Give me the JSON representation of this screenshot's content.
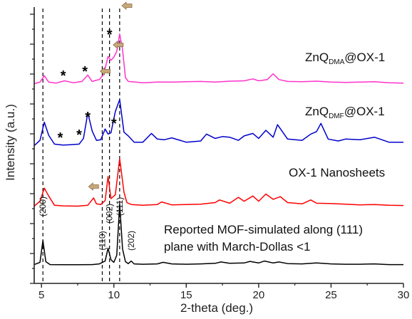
{
  "chart_data": {
    "type": "line",
    "title": "",
    "xlabel": "2-theta (deg.)",
    "ylabel": "Intensity (a.u.)",
    "xlim": [
      4.5,
      30
    ],
    "xticks": [
      5,
      10,
      15,
      20,
      25,
      30
    ],
    "yticks_shown": false,
    "grid": false,
    "dashed_reference_lines_x": [
      5.1,
      9.2,
      9.7,
      10.4
    ],
    "series": [
      {
        "name": "Reported MOF-simulated along (111) plane with March-Dollas <1",
        "color": "#000000",
        "x": [
          4.5,
          4.9,
          5.1,
          5.3,
          5.6,
          6.5,
          7.5,
          8.5,
          9.0,
          9.4,
          9.6,
          9.8,
          10.0,
          10.2,
          10.4,
          10.6,
          10.8,
          11.0,
          11.2,
          11.4,
          12.0,
          13.0,
          13.4,
          14.0,
          15.0,
          16.0,
          17.0,
          17.4,
          18.0,
          19.0,
          19.4,
          20.0,
          20.4,
          21.0,
          21.4,
          22.0,
          23.0,
          24.0,
          25.0,
          26.0,
          27.0,
          28.0,
          29.0,
          30.0
        ],
        "y": [
          0.05,
          0.4,
          3.8,
          0.5,
          0.05,
          0.02,
          0.02,
          0.05,
          0.15,
          0.6,
          2.6,
          0.8,
          0.4,
          1.5,
          9.5,
          2.5,
          0.5,
          0.2,
          0.6,
          0.15,
          0.1,
          0.15,
          0.4,
          0.15,
          0.1,
          0.15,
          0.25,
          0.45,
          0.25,
          0.3,
          0.55,
          0.3,
          0.6,
          0.3,
          0.45,
          0.2,
          0.15,
          0.3,
          0.15,
          0.1,
          0.1,
          0.15,
          0.05,
          0.05
        ]
      },
      {
        "name": "OX-1 Nanosheets",
        "color": "#ff0000",
        "x": [
          4.5,
          4.9,
          5.2,
          5.5,
          5.9,
          6.5,
          7.5,
          8.2,
          8.6,
          8.8,
          9.1,
          9.4,
          9.6,
          9.8,
          10.1,
          10.4,
          10.7,
          10.9,
          11.2,
          12.0,
          13.0,
          13.3,
          14.0,
          15.0,
          16.0,
          17.0,
          17.3,
          18.0,
          18.6,
          19.0,
          19.6,
          20.0,
          20.5,
          21.0,
          21.5,
          22.0,
          23.0,
          23.6,
          24.0,
          25.0,
          26.0,
          27.0,
          28.0,
          29.0,
          30.0
        ],
        "y": [
          0.05,
          0.8,
          2.8,
          1.6,
          0.2,
          0.1,
          0.05,
          0.2,
          1.3,
          0.4,
          0.3,
          0.9,
          4.6,
          1.2,
          1.8,
          7.3,
          2.2,
          0.6,
          0.3,
          0.2,
          0.3,
          0.7,
          0.25,
          0.3,
          0.35,
          0.6,
          1.0,
          0.5,
          1.4,
          0.8,
          1.6,
          0.8,
          1.9,
          1.1,
          1.5,
          0.6,
          0.4,
          1.0,
          0.5,
          0.45,
          0.35,
          0.25,
          0.3,
          0.2,
          0.15
        ]
      },
      {
        "name": "ZnQDMF@OX-1",
        "color": "#0000cc",
        "x": [
          4.5,
          4.9,
          5.2,
          5.5,
          5.9,
          6.5,
          7.0,
          7.6,
          7.9,
          8.2,
          8.5,
          8.8,
          9.1,
          9.4,
          9.6,
          9.8,
          10.1,
          10.4,
          10.7,
          11.0,
          11.4,
          12.0,
          12.6,
          13.0,
          13.5,
          14.0,
          15.0,
          16.0,
          16.4,
          17.0,
          17.5,
          18.0,
          18.6,
          19.0,
          19.6,
          20.0,
          20.5,
          21.0,
          21.3,
          22.0,
          23.0,
          23.6,
          24.0,
          24.3,
          24.8,
          25.5,
          26.0,
          27.0,
          28.0,
          29.0,
          30.0
        ],
        "y": [
          0.05,
          0.9,
          3.8,
          1.7,
          0.3,
          0.15,
          0.2,
          0.3,
          1.2,
          5.3,
          2.4,
          0.9,
          1.0,
          2.7,
          1.9,
          2.1,
          5.5,
          7.4,
          2.2,
          1.6,
          0.6,
          0.6,
          2.0,
          1.1,
          1.0,
          1.3,
          0.6,
          0.8,
          1.9,
          1.2,
          1.5,
          1.4,
          0.9,
          1.6,
          2.0,
          1.2,
          2.5,
          1.4,
          3.4,
          1.1,
          0.9,
          1.9,
          2.3,
          3.6,
          1.1,
          0.8,
          1.1,
          1.0,
          1.4,
          0.6,
          0.6
        ]
      },
      {
        "name": "ZnQDMA@OX-1",
        "color": "#ff33cc",
        "x": [
          4.5,
          4.9,
          5.2,
          5.5,
          6.0,
          6.6,
          7.2,
          7.8,
          8.2,
          8.5,
          8.8,
          9.0,
          9.3,
          9.6,
          9.8,
          10.0,
          10.2,
          10.4,
          10.6,
          10.8,
          11.0,
          11.5,
          12.0,
          13.0,
          14.0,
          15.0,
          16.0,
          17.0,
          18.0,
          19.0,
          19.6,
          20.0,
          20.6,
          21.0,
          21.4,
          22.0,
          23.0,
          24.0,
          25.0,
          26.0,
          27.0,
          28.0,
          29.0,
          30.0
        ],
        "y": [
          0.05,
          0.3,
          1.3,
          0.3,
          0.15,
          0.5,
          0.2,
          0.4,
          1.4,
          0.4,
          0.6,
          0.7,
          1.5,
          4.3,
          3.7,
          4.2,
          5.1,
          7.8,
          5.4,
          1.0,
          0.4,
          0.3,
          0.2,
          0.3,
          0.3,
          0.35,
          0.4,
          0.3,
          0.45,
          0.5,
          0.8,
          0.5,
          0.7,
          1.6,
          0.7,
          0.4,
          0.35,
          0.45,
          0.3,
          0.25,
          0.3,
          0.35,
          0.2,
          0.15
        ]
      }
    ],
    "annotations": {
      "peak_labels": [
        {
          "text": "(200)",
          "x": 5.1
        },
        {
          "text": "(110)",
          "x": 9.2
        },
        {
          "text": "(002)",
          "x": 9.7
        },
        {
          "text": "(111)",
          "x": 10.4
        },
        {
          "text": "(202)",
          "x": 11.2
        }
      ],
      "series_labels": {
        "simulated_line1": "Reported MOF-simulated along (111)",
        "simulated_line2": "plane with March-Dollas <1",
        "nanosheets": "OX-1 Nanosheets",
        "dmf_main": "ZnQ",
        "dmf_sub": "DMF",
        "dmf_tail": "@OX-1",
        "dma_main": "ZnQ",
        "dma_sub": "DMA",
        "dma_tail": "@OX-1"
      },
      "star_text": "*",
      "stars_dmf_x": [
        6.3,
        7.6,
        8.2,
        10.0
      ],
      "stars_dma_x": [
        6.5,
        8.0,
        9.7
      ],
      "arrows_x": [
        8.6,
        9.4,
        10.3,
        10.9
      ]
    },
    "colors": {
      "axis": "#222222",
      "dashed": "#000000",
      "arrow_fill": "#c8a87a",
      "arrow_stroke": "#8a6a40"
    }
  }
}
